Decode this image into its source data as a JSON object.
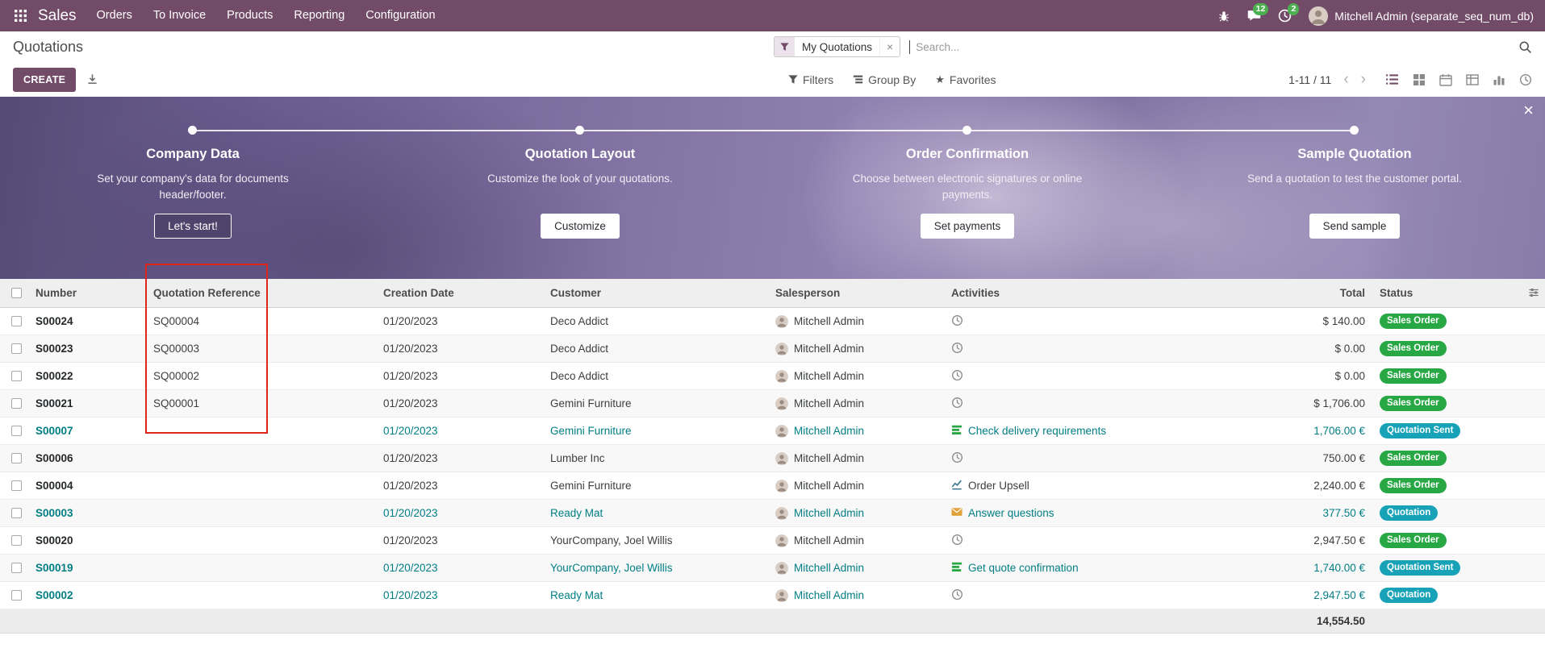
{
  "colors": {
    "brand_purple": "#714B67",
    "highlight_teal": "#017e84",
    "badge_success_green": "#28a745",
    "badge_info_teal": "#17a2b8",
    "annotation_red": "#e0261c"
  },
  "icons": {
    "apps-grid-icon": "3x3-grid",
    "debug-icon": "bug",
    "messages-icon": "chat-bubble",
    "activities-icon": "clock",
    "search-icon": "magnifier",
    "filter-icon": "funnel",
    "group-by-icon": "stacked-bars",
    "favorites-icon": "star",
    "export-icon": "download",
    "view-list-icon": "list",
    "view-kanban-icon": "grid",
    "view-calendar-icon": "calendar",
    "view-pivot-icon": "table",
    "view-graph-icon": "bar-chart",
    "view-activity-icon": "clock",
    "optional-columns-icon": "sliders",
    "activity-clock-icon": "clock",
    "activity-tasks-icon": "list-check",
    "activity-chart-icon": "line-chart",
    "activity-envelope-icon": "envelope"
  },
  "topbar": {
    "brand": "Sales",
    "menus": [
      "Orders",
      "To Invoice",
      "Products",
      "Reporting",
      "Configuration"
    ],
    "messages_badge": "12",
    "activities_badge": "2",
    "user_name": "Mitchell Admin (separate_seq_num_db)"
  },
  "control_panel": {
    "title": "Quotations",
    "create_button": "CREATE",
    "search": {
      "facet_label": "My Quotations",
      "facet_remove": "×",
      "placeholder": "Search..."
    },
    "filters_button": "Filters",
    "group_by_button": "Group By",
    "favorites_button": "Favorites",
    "pager": {
      "text": "1-11 / 11",
      "prev": "‹",
      "next": "›"
    },
    "view_switcher": [
      "list",
      "kanban",
      "calendar",
      "pivot",
      "graph",
      "activity"
    ],
    "active_view": "list"
  },
  "onboarding": {
    "close": "×",
    "steps": [
      {
        "title": "Company Data",
        "desc": "Set your company's data for documents header/footer.",
        "button": "Let's start!"
      },
      {
        "title": "Quotation Layout",
        "desc": "Customize the look of your quotations.",
        "button": "Customize"
      },
      {
        "title": "Order Confirmation",
        "desc": "Choose between electronic signatures or online payments.",
        "button": "Set payments"
      },
      {
        "title": "Sample Quotation",
        "desc": "Send a quotation to test the customer portal.",
        "button": "Send sample"
      }
    ]
  },
  "table": {
    "headers": {
      "number": "Number",
      "reference": "Quotation Reference",
      "date": "Creation Date",
      "customer": "Customer",
      "salesperson": "Salesperson",
      "activities": "Activities",
      "total": "Total",
      "status": "Status"
    },
    "rows": [
      {
        "number": "S00024",
        "reference": "SQ00004",
        "date": "01/20/2023",
        "customer": "Deco Addict",
        "salesperson": "Mitchell Admin",
        "activity_icon": "clock",
        "activity_text": "",
        "total": "$ 140.00",
        "status": "Sales Order",
        "status_color": "success",
        "highlighted": false
      },
      {
        "number": "S00023",
        "reference": "SQ00003",
        "date": "01/20/2023",
        "customer": "Deco Addict",
        "salesperson": "Mitchell Admin",
        "activity_icon": "clock",
        "activity_text": "",
        "total": "$ 0.00",
        "status": "Sales Order",
        "status_color": "success",
        "highlighted": false
      },
      {
        "number": "S00022",
        "reference": "SQ00002",
        "date": "01/20/2023",
        "customer": "Deco Addict",
        "salesperson": "Mitchell Admin",
        "activity_icon": "clock",
        "activity_text": "",
        "total": "$ 0.00",
        "status": "Sales Order",
        "status_color": "success",
        "highlighted": false
      },
      {
        "number": "S00021",
        "reference": "SQ00001",
        "date": "01/20/2023",
        "customer": "Gemini Furniture",
        "salesperson": "Mitchell Admin",
        "activity_icon": "clock",
        "activity_text": "",
        "total": "$ 1,706.00",
        "status": "Sales Order",
        "status_color": "success",
        "highlighted": false
      },
      {
        "number": "S00007",
        "reference": "",
        "date": "01/20/2023",
        "customer": "Gemini Furniture",
        "salesperson": "Mitchell Admin",
        "activity_icon": "tasks",
        "activity_text": "Check delivery requirements",
        "total": "1,706.00 €",
        "status": "Quotation Sent",
        "status_color": "info",
        "highlighted": true
      },
      {
        "number": "S00006",
        "reference": "",
        "date": "01/20/2023",
        "customer": "Lumber Inc",
        "salesperson": "Mitchell Admin",
        "activity_icon": "clock",
        "activity_text": "",
        "total": "750.00 €",
        "status": "Sales Order",
        "status_color": "success",
        "highlighted": false
      },
      {
        "number": "S00004",
        "reference": "",
        "date": "01/20/2023",
        "customer": "Gemini Furniture",
        "salesperson": "Mitchell Admin",
        "activity_icon": "chart",
        "activity_text": "Order Upsell",
        "total": "2,240.00 €",
        "status": "Sales Order",
        "status_color": "success",
        "highlighted": false
      },
      {
        "number": "S00003",
        "reference": "",
        "date": "01/20/2023",
        "customer": "Ready Mat",
        "salesperson": "Mitchell Admin",
        "activity_icon": "envelope",
        "activity_text": "Answer questions",
        "total": "377.50 €",
        "status": "Quotation",
        "status_color": "info",
        "highlighted": true
      },
      {
        "number": "S00020",
        "reference": "",
        "date": "01/20/2023",
        "customer": "YourCompany, Joel Willis",
        "salesperson": "Mitchell Admin",
        "activity_icon": "clock",
        "activity_text": "",
        "total": "2,947.50 €",
        "status": "Sales Order",
        "status_color": "success",
        "highlighted": false
      },
      {
        "number": "S00019",
        "reference": "",
        "date": "01/20/2023",
        "customer": "YourCompany, Joel Willis",
        "salesperson": "Mitchell Admin",
        "activity_icon": "tasks",
        "activity_text": "Get quote confirmation",
        "total": "1,740.00 €",
        "status": "Quotation Sent",
        "status_color": "info",
        "highlighted": true
      },
      {
        "number": "S00002",
        "reference": "",
        "date": "01/20/2023",
        "customer": "Ready Mat",
        "salesperson": "Mitchell Admin",
        "activity_icon": "clock",
        "activity_text": "",
        "total": "2,947.50 €",
        "status": "Quotation",
        "status_color": "info",
        "highlighted": true
      }
    ],
    "footer_total": "14,554.50"
  }
}
